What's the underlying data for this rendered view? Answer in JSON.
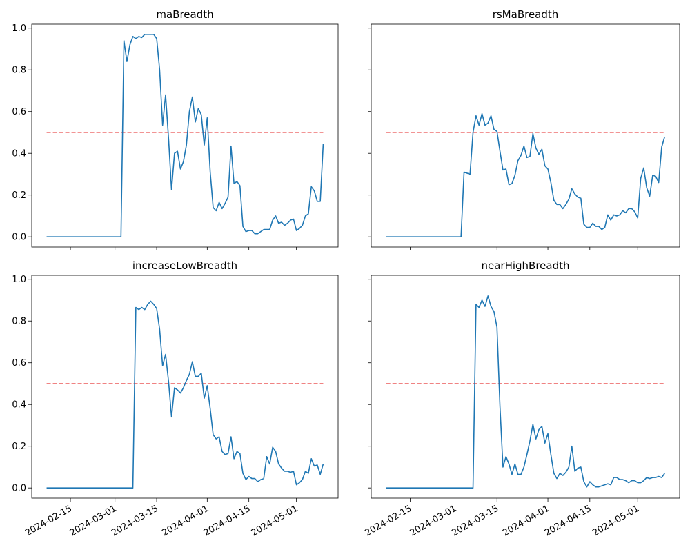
{
  "chart_data": [
    {
      "type": "line",
      "title": "maBreadth",
      "color": "#1f77b4",
      "hline": 0.5,
      "hline_color": "#ee7070",
      "xlim": [
        "2024-02-02",
        "2024-05-15"
      ],
      "xticks": [
        "2024-02-15",
        "2024-03-01",
        "2024-03-15",
        "2024-04-01",
        "2024-04-15",
        "2024-05-01"
      ],
      "ylim": [
        -0.049,
        1.019
      ],
      "yticks": [
        {
          "value": 0,
          "label": "0.0"
        },
        0.2,
        0.4,
        0.6,
        0.8,
        {
          "value": 1,
          "label": "1.0"
        }
      ],
      "x": [
        "2024-02-07",
        "2024-02-08",
        "2024-02-09",
        "2024-02-10",
        "2024-02-11",
        "2024-02-12",
        "2024-02-13",
        "2024-02-14",
        "2024-02-15",
        "2024-02-16",
        "2024-02-17",
        "2024-02-18",
        "2024-02-19",
        "2024-02-20",
        "2024-02-21",
        "2024-02-22",
        "2024-02-23",
        "2024-02-24",
        "2024-02-25",
        "2024-02-26",
        "2024-02-27",
        "2024-02-28",
        "2024-02-29",
        "2024-03-01",
        "2024-03-02",
        "2024-03-03",
        "2024-03-04",
        "2024-03-05",
        "2024-03-06",
        "2024-03-07",
        "2024-03-08",
        "2024-03-09",
        "2024-03-10",
        "2024-03-11",
        "2024-03-12",
        "2024-03-13",
        "2024-03-14",
        "2024-03-15",
        "2024-03-16",
        "2024-03-17",
        "2024-03-18",
        "2024-03-19",
        "2024-03-20",
        "2024-03-21",
        "2024-03-22",
        "2024-03-23",
        "2024-03-24",
        "2024-03-25",
        "2024-03-26",
        "2024-03-27",
        "2024-03-28",
        "2024-03-29",
        "2024-03-30",
        "2024-03-31",
        "2024-04-01",
        "2024-04-02",
        "2024-04-03",
        "2024-04-04",
        "2024-04-05",
        "2024-04-06",
        "2024-04-07",
        "2024-04-08",
        "2024-04-09",
        "2024-04-10",
        "2024-04-11",
        "2024-04-12",
        "2024-04-13",
        "2024-04-14",
        "2024-04-15",
        "2024-04-16",
        "2024-04-17",
        "2024-04-18",
        "2024-04-19",
        "2024-04-20",
        "2024-04-21",
        "2024-04-22",
        "2024-04-23",
        "2024-04-24",
        "2024-04-25",
        "2024-04-26",
        "2024-04-27",
        "2024-04-28",
        "2024-04-29",
        "2024-04-30",
        "2024-05-01",
        "2024-05-02",
        "2024-05-03",
        "2024-05-04",
        "2024-05-05",
        "2024-05-06",
        "2024-05-07",
        "2024-05-08",
        "2024-05-09",
        "2024-05-10"
      ],
      "values": [
        0,
        0,
        0,
        0,
        0,
        0,
        0,
        0,
        0,
        0,
        0,
        0,
        0,
        0,
        0,
        0,
        0,
        0,
        0,
        0,
        0,
        0,
        0,
        0,
        0,
        0,
        0.94,
        0.84,
        0.92,
        0.96,
        0.95,
        0.96,
        0.955,
        0.97,
        0.97,
        0.97,
        0.97,
        0.95,
        0.8,
        0.535,
        0.68,
        0.47,
        0.225,
        0.4,
        0.41,
        0.325,
        0.36,
        0.44,
        0.6,
        0.67,
        0.55,
        0.615,
        0.585,
        0.44,
        0.57,
        0.31,
        0.14,
        0.125,
        0.165,
        0.135,
        0.16,
        0.19,
        0.435,
        0.255,
        0.265,
        0.245,
        0.05,
        0.025,
        0.03,
        0.03,
        0.015,
        0.015,
        0.025,
        0.035,
        0.035,
        0.035,
        0.08,
        0.1,
        0.065,
        0.07,
        0.055,
        0.065,
        0.08,
        0.085,
        0.03,
        0.04,
        0.055,
        0.1,
        0.11,
        0.24,
        0.22,
        0.17,
        0.17,
        0.445
      ]
    },
    {
      "type": "line",
      "title": "rsMaBreadth",
      "color": "#1f77b4",
      "hline": 0.5,
      "hline_color": "#ee7070",
      "xlim": [
        "2024-02-02",
        "2024-05-15"
      ],
      "xticks": [
        "2024-02-15",
        "2024-03-01",
        "2024-03-15",
        "2024-04-01",
        "2024-04-15",
        "2024-05-01"
      ],
      "ylim": [
        -0.049,
        1.019
      ],
      "yticks": [
        {
          "value": 0,
          "label": "0.0"
        },
        0.2,
        0.4,
        0.6,
        0.8,
        {
          "value": 1,
          "label": "1.0"
        }
      ],
      "x": [
        "2024-02-07",
        "2024-02-08",
        "2024-02-09",
        "2024-02-10",
        "2024-02-11",
        "2024-02-12",
        "2024-02-13",
        "2024-02-14",
        "2024-02-15",
        "2024-02-16",
        "2024-02-17",
        "2024-02-18",
        "2024-02-19",
        "2024-02-20",
        "2024-02-21",
        "2024-02-22",
        "2024-02-23",
        "2024-02-24",
        "2024-02-25",
        "2024-02-26",
        "2024-02-27",
        "2024-02-28",
        "2024-02-29",
        "2024-03-01",
        "2024-03-02",
        "2024-03-03",
        "2024-03-04",
        "2024-03-05",
        "2024-03-06",
        "2024-03-07",
        "2024-03-08",
        "2024-03-09",
        "2024-03-10",
        "2024-03-11",
        "2024-03-12",
        "2024-03-13",
        "2024-03-14",
        "2024-03-15",
        "2024-03-16",
        "2024-03-17",
        "2024-03-18",
        "2024-03-19",
        "2024-03-20",
        "2024-03-21",
        "2024-03-22",
        "2024-03-23",
        "2024-03-24",
        "2024-03-25",
        "2024-03-26",
        "2024-03-27",
        "2024-03-28",
        "2024-03-29",
        "2024-03-30",
        "2024-03-31",
        "2024-04-01",
        "2024-04-02",
        "2024-04-03",
        "2024-04-04",
        "2024-04-05",
        "2024-04-06",
        "2024-04-07",
        "2024-04-08",
        "2024-04-09",
        "2024-04-10",
        "2024-04-11",
        "2024-04-12",
        "2024-04-13",
        "2024-04-14",
        "2024-04-15",
        "2024-04-16",
        "2024-04-17",
        "2024-04-18",
        "2024-04-19",
        "2024-04-20",
        "2024-04-21",
        "2024-04-22",
        "2024-04-23",
        "2024-04-24",
        "2024-04-25",
        "2024-04-26",
        "2024-04-27",
        "2024-04-28",
        "2024-04-29",
        "2024-04-30",
        "2024-05-01",
        "2024-05-02",
        "2024-05-03",
        "2024-05-04",
        "2024-05-05",
        "2024-05-06",
        "2024-05-07",
        "2024-05-08",
        "2024-05-09",
        "2024-05-10"
      ],
      "values": [
        0,
        0,
        0,
        0,
        0,
        0,
        0,
        0,
        0,
        0,
        0,
        0,
        0,
        0,
        0,
        0,
        0,
        0,
        0,
        0,
        0,
        0,
        0,
        0,
        0,
        0,
        0.31,
        0.305,
        0.3,
        0.5,
        0.58,
        0.535,
        0.59,
        0.535,
        0.545,
        0.58,
        0.515,
        0.505,
        0.41,
        0.32,
        0.325,
        0.25,
        0.255,
        0.295,
        0.365,
        0.39,
        0.435,
        0.38,
        0.385,
        0.495,
        0.425,
        0.395,
        0.42,
        0.34,
        0.325,
        0.26,
        0.175,
        0.155,
        0.155,
        0.135,
        0.155,
        0.18,
        0.23,
        0.205,
        0.19,
        0.185,
        0.06,
        0.045,
        0.045,
        0.065,
        0.05,
        0.05,
        0.035,
        0.045,
        0.105,
        0.08,
        0.105,
        0.1,
        0.105,
        0.125,
        0.115,
        0.135,
        0.135,
        0.12,
        0.09,
        0.28,
        0.33,
        0.235,
        0.195,
        0.295,
        0.29,
        0.26,
        0.43,
        0.48
      ]
    },
    {
      "type": "line",
      "title": "increaseLowBreadth",
      "color": "#1f77b4",
      "hline": 0.5,
      "hline_color": "#ee7070",
      "xlim": [
        "2024-02-02",
        "2024-05-15"
      ],
      "xticks": [
        "2024-02-15",
        "2024-03-01",
        "2024-03-15",
        "2024-04-01",
        "2024-04-15",
        "2024-05-01"
      ],
      "ylim": [
        -0.049,
        1.019
      ],
      "yticks": [
        {
          "value": 0,
          "label": "0.0"
        },
        0.2,
        0.4,
        0.6,
        0.8,
        {
          "value": 1,
          "label": "1.0"
        }
      ],
      "x": [
        "2024-02-07",
        "2024-02-08",
        "2024-02-09",
        "2024-02-10",
        "2024-02-11",
        "2024-02-12",
        "2024-02-13",
        "2024-02-14",
        "2024-02-15",
        "2024-02-16",
        "2024-02-17",
        "2024-02-18",
        "2024-02-19",
        "2024-02-20",
        "2024-02-21",
        "2024-02-22",
        "2024-02-23",
        "2024-02-24",
        "2024-02-25",
        "2024-02-26",
        "2024-02-27",
        "2024-02-28",
        "2024-02-29",
        "2024-03-01",
        "2024-03-02",
        "2024-03-03",
        "2024-03-04",
        "2024-03-05",
        "2024-03-06",
        "2024-03-07",
        "2024-03-08",
        "2024-03-09",
        "2024-03-10",
        "2024-03-11",
        "2024-03-12",
        "2024-03-13",
        "2024-03-14",
        "2024-03-15",
        "2024-03-16",
        "2024-03-17",
        "2024-03-18",
        "2024-03-19",
        "2024-03-20",
        "2024-03-21",
        "2024-03-22",
        "2024-03-23",
        "2024-03-24",
        "2024-03-25",
        "2024-03-26",
        "2024-03-27",
        "2024-03-28",
        "2024-03-29",
        "2024-03-30",
        "2024-03-31",
        "2024-04-01",
        "2024-04-02",
        "2024-04-03",
        "2024-04-04",
        "2024-04-05",
        "2024-04-06",
        "2024-04-07",
        "2024-04-08",
        "2024-04-09",
        "2024-04-10",
        "2024-04-11",
        "2024-04-12",
        "2024-04-13",
        "2024-04-14",
        "2024-04-15",
        "2024-04-16",
        "2024-04-17",
        "2024-04-18",
        "2024-04-19",
        "2024-04-20",
        "2024-04-21",
        "2024-04-22",
        "2024-04-23",
        "2024-04-24",
        "2024-04-25",
        "2024-04-26",
        "2024-04-27",
        "2024-04-28",
        "2024-04-29",
        "2024-04-30",
        "2024-05-01",
        "2024-05-02",
        "2024-05-03",
        "2024-05-04",
        "2024-05-05",
        "2024-05-06",
        "2024-05-07",
        "2024-05-08",
        "2024-05-09",
        "2024-05-10"
      ],
      "values": [
        0,
        0,
        0,
        0,
        0,
        0,
        0,
        0,
        0,
        0,
        0,
        0,
        0,
        0,
        0,
        0,
        0,
        0,
        0,
        0,
        0,
        0,
        0,
        0,
        0,
        0,
        0,
        0,
        0,
        0,
        0.865,
        0.855,
        0.865,
        0.855,
        0.88,
        0.895,
        0.88,
        0.86,
        0.76,
        0.585,
        0.64,
        0.51,
        0.34,
        0.48,
        0.47,
        0.455,
        0.48,
        0.515,
        0.545,
        0.605,
        0.535,
        0.535,
        0.55,
        0.43,
        0.49,
        0.38,
        0.255,
        0.235,
        0.245,
        0.175,
        0.16,
        0.165,
        0.245,
        0.14,
        0.175,
        0.165,
        0.07,
        0.04,
        0.055,
        0.045,
        0.045,
        0.03,
        0.04,
        0.045,
        0.15,
        0.115,
        0.195,
        0.175,
        0.115,
        0.095,
        0.08,
        0.08,
        0.075,
        0.08,
        0.015,
        0.025,
        0.04,
        0.08,
        0.07,
        0.14,
        0.105,
        0.11,
        0.065,
        0.115
      ]
    },
    {
      "type": "line",
      "title": "nearHighBreadth",
      "color": "#1f77b4",
      "hline": 0.5,
      "hline_color": "#ee7070",
      "xlim": [
        "2024-02-02",
        "2024-05-15"
      ],
      "xticks": [
        "2024-02-15",
        "2024-03-01",
        "2024-03-15",
        "2024-04-01",
        "2024-04-15",
        "2024-05-01"
      ],
      "ylim": [
        -0.049,
        1.019
      ],
      "yticks": [
        {
          "value": 0,
          "label": "0.0"
        },
        0.2,
        0.4,
        0.6,
        0.8,
        {
          "value": 1,
          "label": "1.0"
        }
      ],
      "x": [
        "2024-02-07",
        "2024-02-08",
        "2024-02-09",
        "2024-02-10",
        "2024-02-11",
        "2024-02-12",
        "2024-02-13",
        "2024-02-14",
        "2024-02-15",
        "2024-02-16",
        "2024-02-17",
        "2024-02-18",
        "2024-02-19",
        "2024-02-20",
        "2024-02-21",
        "2024-02-22",
        "2024-02-23",
        "2024-02-24",
        "2024-02-25",
        "2024-02-26",
        "2024-02-27",
        "2024-02-28",
        "2024-02-29",
        "2024-03-01",
        "2024-03-02",
        "2024-03-03",
        "2024-03-04",
        "2024-03-05",
        "2024-03-06",
        "2024-03-07",
        "2024-03-08",
        "2024-03-09",
        "2024-03-10",
        "2024-03-11",
        "2024-03-12",
        "2024-03-13",
        "2024-03-14",
        "2024-03-15",
        "2024-03-16",
        "2024-03-17",
        "2024-03-18",
        "2024-03-19",
        "2024-03-20",
        "2024-03-21",
        "2024-03-22",
        "2024-03-23",
        "2024-03-24",
        "2024-03-25",
        "2024-03-26",
        "2024-03-27",
        "2024-03-28",
        "2024-03-29",
        "2024-03-30",
        "2024-03-31",
        "2024-04-01",
        "2024-04-02",
        "2024-04-03",
        "2024-04-04",
        "2024-04-05",
        "2024-04-06",
        "2024-04-07",
        "2024-04-08",
        "2024-04-09",
        "2024-04-10",
        "2024-04-11",
        "2024-04-12",
        "2024-04-13",
        "2024-04-14",
        "2024-04-15",
        "2024-04-16",
        "2024-04-17",
        "2024-04-18",
        "2024-04-19",
        "2024-04-20",
        "2024-04-21",
        "2024-04-22",
        "2024-04-23",
        "2024-04-24",
        "2024-04-25",
        "2024-04-26",
        "2024-04-27",
        "2024-04-28",
        "2024-04-29",
        "2024-04-30",
        "2024-05-01",
        "2024-05-02",
        "2024-05-03",
        "2024-05-04",
        "2024-05-05",
        "2024-05-06",
        "2024-05-07",
        "2024-05-08",
        "2024-05-09",
        "2024-05-10"
      ],
      "values": [
        0,
        0,
        0,
        0,
        0,
        0,
        0,
        0,
        0,
        0,
        0,
        0,
        0,
        0,
        0,
        0,
        0,
        0,
        0,
        0,
        0,
        0,
        0,
        0,
        0,
        0,
        0,
        0,
        0,
        0,
        0.88,
        0.865,
        0.9,
        0.87,
        0.92,
        0.87,
        0.845,
        0.77,
        0.39,
        0.1,
        0.15,
        0.115,
        0.065,
        0.115,
        0.065,
        0.065,
        0.1,
        0.16,
        0.225,
        0.305,
        0.235,
        0.28,
        0.295,
        0.215,
        0.26,
        0.16,
        0.07,
        0.045,
        0.07,
        0.06,
        0.075,
        0.1,
        0.2,
        0.08,
        0.095,
        0.1,
        0.03,
        0.005,
        0.03,
        0.015,
        0.005,
        0.005,
        0.01,
        0.015,
        0.02,
        0.015,
        0.05,
        0.05,
        0.04,
        0.04,
        0.035,
        0.025,
        0.035,
        0.035,
        0.025,
        0.025,
        0.035,
        0.05,
        0.045,
        0.05,
        0.05,
        0.055,
        0.05,
        0.07
      ]
    }
  ]
}
